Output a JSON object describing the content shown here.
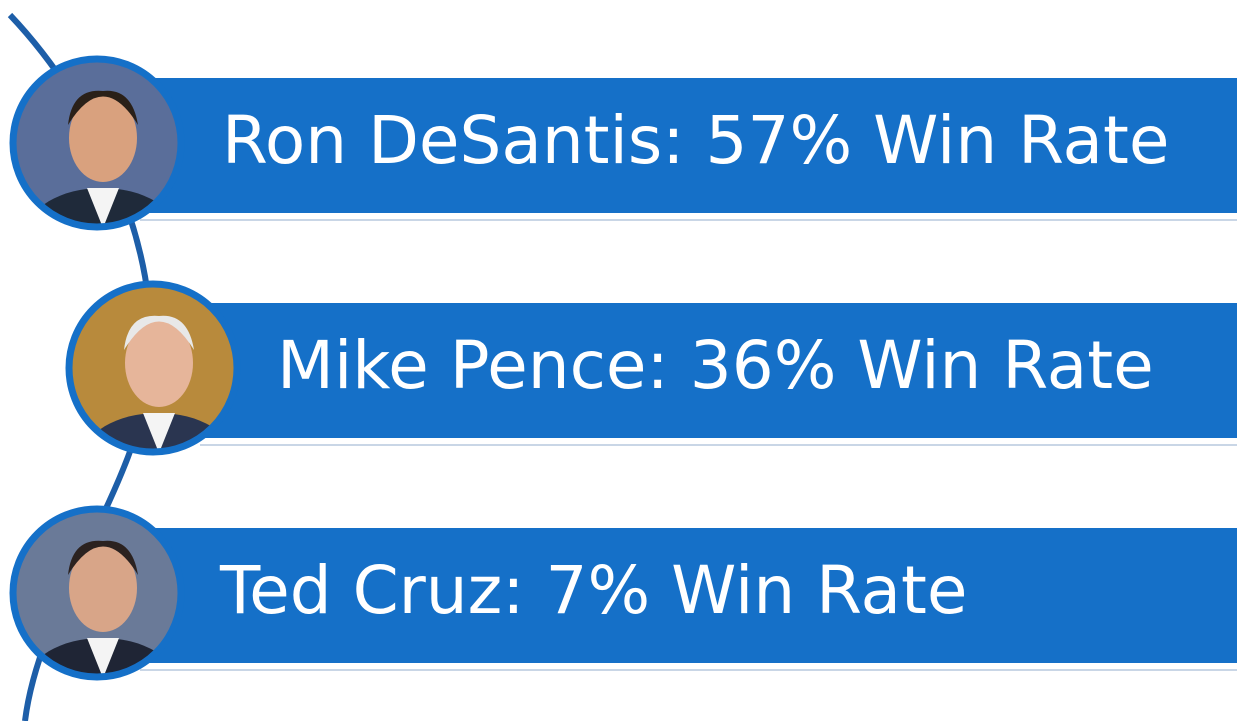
{
  "items": [
    {
      "label": "Ron DeSantis: 57% Win Rate"
    },
    {
      "label": "Mike Pence: 36% Win Rate"
    },
    {
      "label": "Ted Cruz: 7% Win Rate"
    }
  ]
}
